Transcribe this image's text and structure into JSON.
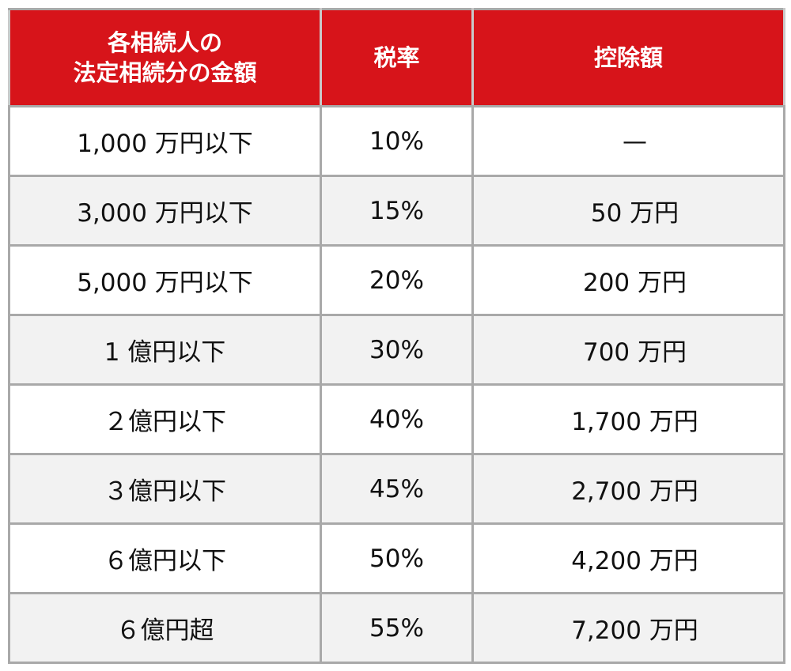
{
  "table": {
    "headers": [
      [
        "各相続人の",
        "法定相続分の金額"
      ],
      [
        "税率"
      ],
      [
        "控除額"
      ]
    ],
    "rows": [
      {
        "amount": "1,000 万円以下",
        "rate": "10%",
        "deduction": "—"
      },
      {
        "amount": "3,000 万円以下",
        "rate": "15%",
        "deduction": "50 万円"
      },
      {
        "amount": "5,000 万円以下",
        "rate": "20%",
        "deduction": "200 万円"
      },
      {
        "amount": "1 億円以下",
        "rate": "30%",
        "deduction": "700 万円"
      },
      {
        "amount": "２億円以下",
        "rate": "40%",
        "deduction": "1,700 万円"
      },
      {
        "amount": "３億円以下",
        "rate": "45%",
        "deduction": "2,700 万円"
      },
      {
        "amount": "６億円以下",
        "rate": "50%",
        "deduction": "4,200 万円"
      },
      {
        "amount": "６億円超",
        "rate": "55%",
        "deduction": "7,200 万円"
      }
    ]
  },
  "colors": {
    "header_bg": "#d7141a",
    "header_text": "#ffffff",
    "border": "#a9a9a9",
    "odd_row_bg": "#f2f2f2",
    "even_row_bg": "#ffffff"
  }
}
